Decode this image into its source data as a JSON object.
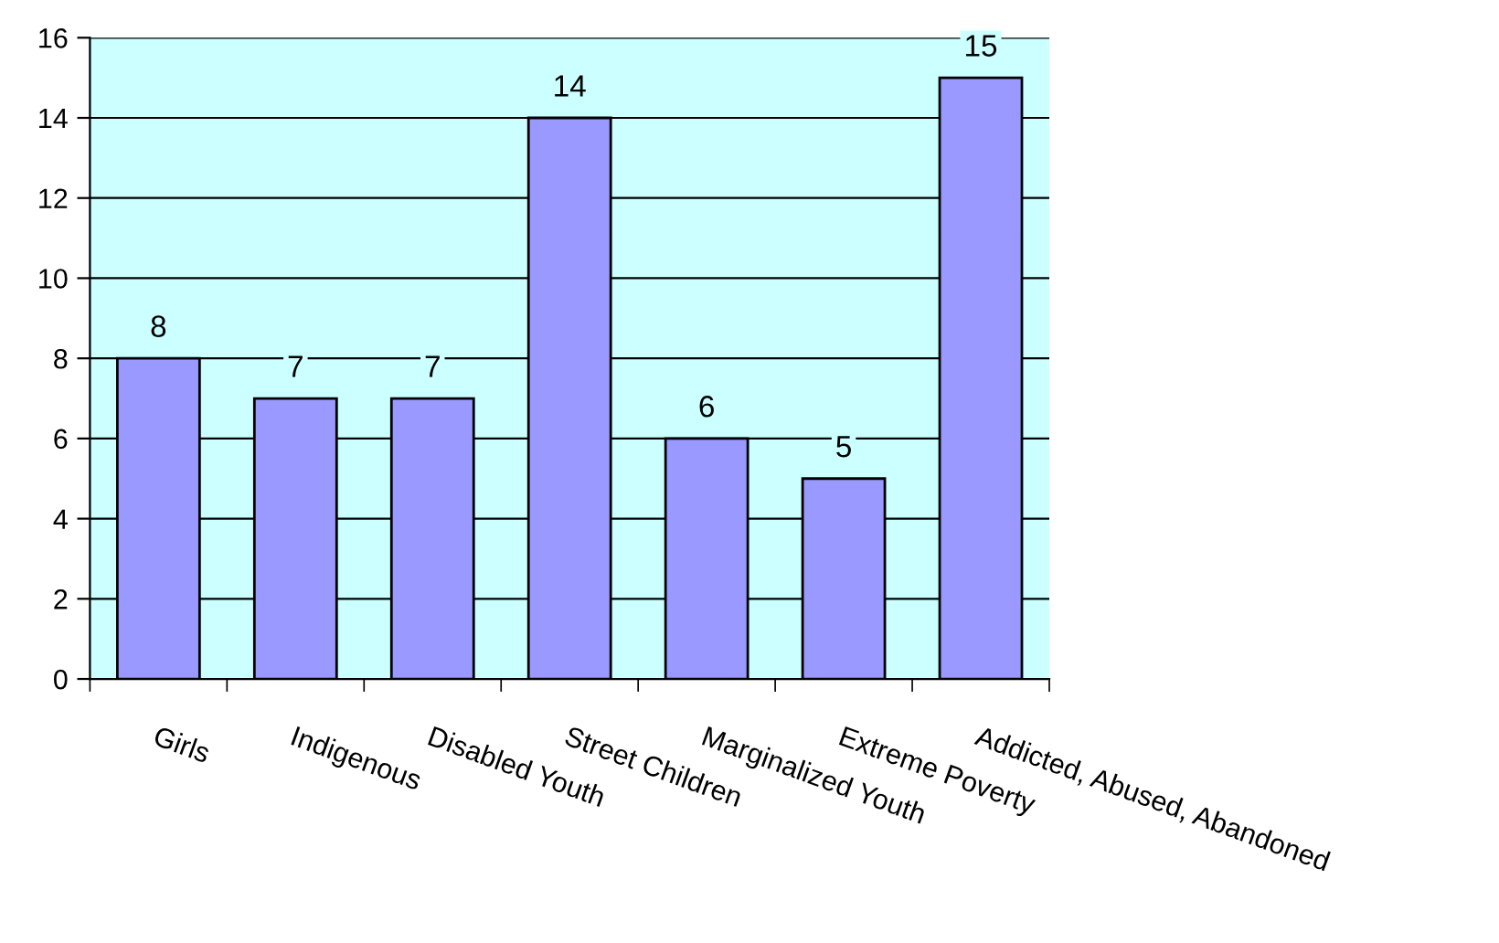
{
  "chart_data": {
    "type": "bar",
    "categories": [
      "Girls",
      "Indigenous",
      "Disabled Youth",
      "Street Children",
      "Marginalized Youth",
      "Extreme Poverty",
      "Addicted, Abused, Abandoned"
    ],
    "values": [
      8,
      7,
      7,
      14,
      6,
      5,
      15
    ],
    "color": "#9999ff",
    "ylim": [
      0,
      16
    ],
    "yticks": [
      0,
      2,
      4,
      6,
      8,
      10,
      12,
      14,
      16
    ],
    "grid": "y",
    "data_labels": true,
    "legend": false
  }
}
